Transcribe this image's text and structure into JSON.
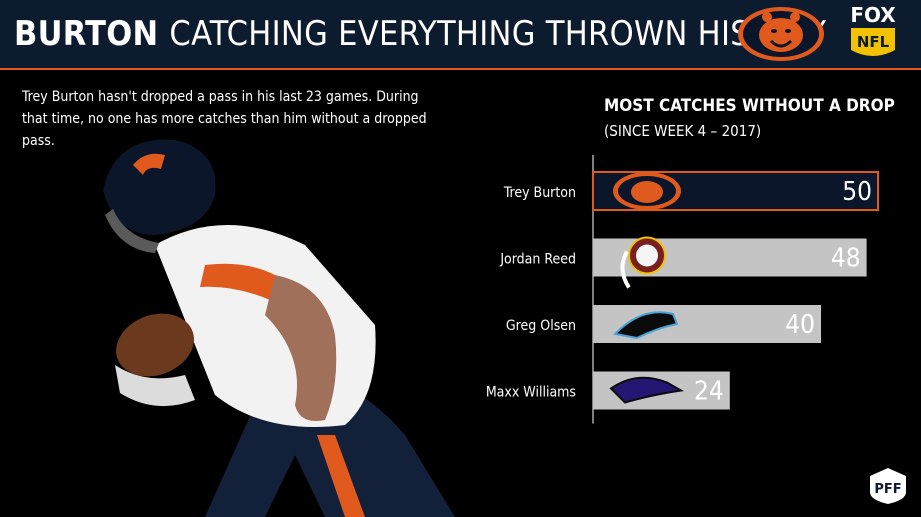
{
  "header": {
    "title_bold": "BURTON",
    "title_rest": "CATCHING EVERYTHING THROWN HIS WAY"
  },
  "subtitle": "Trey Burton hasn't dropped a pass in his last 23 games. During that time, no one has more catches than him without a dropped pass.",
  "logos": {
    "fox_top": "FOX",
    "fox_bottom": "NFL",
    "pff": "PFF"
  },
  "colors": {
    "header_bg": "#0d1b2e",
    "accent": "#e05a1e",
    "bar_highlight": "#0b162a",
    "bar_default": "#c4c4c4"
  },
  "chart_data": {
    "type": "bar",
    "orientation": "horizontal",
    "title": "MOST CATCHES WITHOUT A DROP",
    "subtitle": "(SINCE WEEK 4 – 2017)",
    "categories": [
      "Trey Burton",
      "Jordan Reed",
      "Greg Olsen",
      "Maxx Williams"
    ],
    "values": [
      50,
      48,
      40,
      24
    ],
    "team_icons": [
      "bears-icon",
      "redskins-icon",
      "panthers-icon",
      "ravens-icon"
    ],
    "highlight_index": 0,
    "xlim": [
      0,
      50
    ],
    "grid": false
  }
}
